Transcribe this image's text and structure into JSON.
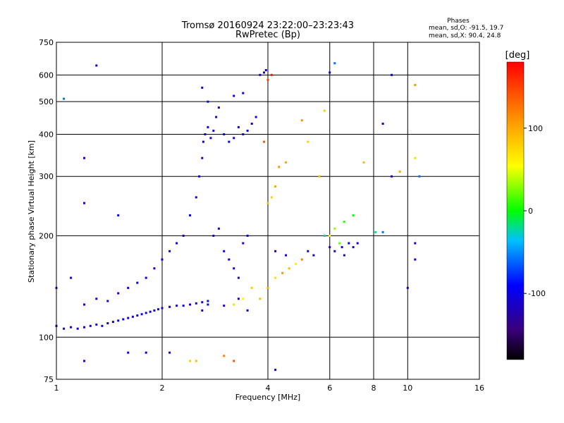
{
  "chart_data": {
    "type": "scatter",
    "title": "Tromsø 20160924 23:22:00–23:23:43",
    "subtitle": "RwPretec (Bp)",
    "xlabel": "Frequency [MHz]",
    "ylabel": "Stationary phase Virtual Height [km]",
    "x_scale": "log",
    "y_scale": "log",
    "xlim": [
      1,
      16
    ],
    "ylim": [
      75,
      750
    ],
    "x_ticks": [
      1,
      2,
      4,
      6,
      8,
      10,
      16
    ],
    "x_tick_labels": [
      "1",
      "2",
      "4",
      "6",
      "8",
      "10",
      "16"
    ],
    "y_ticks": [
      75,
      100,
      200,
      300,
      400,
      500,
      600,
      750
    ],
    "y_tick_labels": [
      "75",
      "100",
      "200",
      "300",
      "400",
      "500",
      "600",
      "750"
    ],
    "grid": true,
    "stats": {
      "heading": "Phases",
      "line_o": "mean, sd,O: -91.5, 19.7",
      "line_x": "mean, sd,X:  90.4, 24.8"
    },
    "colorbar": {
      "label": "[deg]",
      "min": -180,
      "max": 180,
      "ticks": [
        100,
        0,
        -100
      ],
      "tick_labels": [
        "100",
        "0",
        "-100"
      ]
    },
    "series": [
      {
        "values": [
          [
            1.0,
            108,
            -110
          ],
          [
            1.05,
            106,
            -105
          ],
          [
            1.1,
            107,
            -100
          ],
          [
            1.15,
            106,
            -95
          ],
          [
            1.2,
            107,
            -110
          ],
          [
            1.25,
            108,
            -100
          ],
          [
            1.3,
            109,
            -105
          ],
          [
            1.35,
            108,
            -95
          ],
          [
            1.4,
            110,
            -110
          ],
          [
            1.45,
            111,
            -100
          ],
          [
            1.5,
            112,
            -105
          ],
          [
            1.55,
            113,
            -95
          ],
          [
            1.6,
            114,
            -110
          ],
          [
            1.65,
            115,
            -100
          ],
          [
            1.7,
            116,
            -105
          ],
          [
            1.75,
            117,
            -95
          ],
          [
            1.8,
            118,
            -110
          ],
          [
            1.85,
            119,
            -100
          ],
          [
            1.9,
            120,
            -105
          ],
          [
            1.95,
            121,
            -95
          ],
          [
            2.0,
            122,
            -110
          ],
          [
            2.1,
            123,
            -100
          ],
          [
            2.2,
            124,
            -105
          ],
          [
            2.3,
            124,
            -95
          ],
          [
            2.4,
            125,
            -110
          ],
          [
            2.5,
            126,
            -100
          ],
          [
            2.6,
            127,
            -105
          ],
          [
            2.7,
            128,
            -95
          ],
          [
            1.2,
            125,
            -110
          ],
          [
            1.3,
            130,
            -100
          ],
          [
            1.4,
            128,
            -105
          ],
          [
            1.5,
            135,
            -110
          ],
          [
            1.6,
            140,
            -100
          ],
          [
            1.7,
            145,
            -105
          ],
          [
            1.8,
            150,
            -95
          ],
          [
            1.9,
            160,
            -110
          ],
          [
            2.0,
            170,
            -100
          ],
          [
            2.1,
            180,
            -105
          ],
          [
            2.2,
            190,
            -95
          ],
          [
            2.3,
            200,
            -110
          ],
          [
            2.4,
            230,
            -100
          ],
          [
            2.5,
            260,
            -105
          ],
          [
            2.55,
            300,
            -95
          ],
          [
            2.6,
            340,
            -110
          ],
          [
            2.62,
            380,
            -100
          ],
          [
            2.65,
            400,
            -105
          ],
          [
            2.7,
            420,
            -95
          ],
          [
            2.75,
            390,
            -110
          ],
          [
            2.8,
            410,
            -100
          ],
          [
            2.85,
            450,
            -105
          ],
          [
            2.7,
            500,
            -95
          ],
          [
            2.9,
            480,
            -110
          ],
          [
            2.6,
            550,
            -100
          ],
          [
            3.0,
            400,
            -105
          ],
          [
            3.1,
            380,
            -95
          ],
          [
            3.2,
            390,
            -110
          ],
          [
            3.3,
            420,
            -100
          ],
          [
            3.4,
            400,
            -105
          ],
          [
            3.5,
            410,
            -95
          ],
          [
            3.6,
            430,
            -110
          ],
          [
            3.7,
            450,
            -100
          ],
          [
            3.8,
            600,
            -105
          ],
          [
            3.9,
            610,
            -110
          ],
          [
            3.95,
            620,
            -100
          ],
          [
            3.2,
            520,
            -105
          ],
          [
            3.4,
            530,
            -95
          ],
          [
            2.8,
            200,
            -110
          ],
          [
            2.9,
            210,
            -100
          ],
          [
            3.0,
            180,
            -105
          ],
          [
            3.1,
            170,
            -95
          ],
          [
            3.2,
            160,
            -110
          ],
          [
            3.3,
            150,
            -100
          ],
          [
            3.4,
            190,
            -105
          ],
          [
            3.5,
            200,
            -95
          ],
          [
            3.3,
            130,
            -110
          ],
          [
            3.5,
            120,
            -100
          ],
          [
            2.6,
            120,
            -105
          ],
          [
            2.7,
            125,
            -95
          ],
          [
            3.0,
            124,
            -110
          ],
          [
            3.2,
            125,
            40
          ],
          [
            3.4,
            130,
            60
          ],
          [
            3.6,
            140,
            80
          ],
          [
            3.8,
            130,
            90
          ],
          [
            4.0,
            140,
            100
          ],
          [
            4.2,
            150,
            70
          ],
          [
            4.4,
            155,
            110
          ],
          [
            4.6,
            160,
            90
          ],
          [
            4.8,
            165,
            60
          ],
          [
            5.0,
            170,
            120
          ],
          [
            4.0,
            250,
            90
          ],
          [
            4.1,
            260,
            80
          ],
          [
            4.2,
            280,
            100
          ],
          [
            4.3,
            320,
            110
          ],
          [
            4.5,
            330,
            100
          ],
          [
            4.0,
            580,
            150
          ],
          [
            4.1,
            600,
            170
          ],
          [
            3.9,
            380,
            140
          ],
          [
            5.0,
            440,
            110
          ],
          [
            5.2,
            380,
            80
          ],
          [
            5.6,
            300,
            90
          ],
          [
            6.0,
            200,
            60
          ],
          [
            6.2,
            210,
            30
          ],
          [
            6.4,
            190,
            20
          ],
          [
            6.6,
            220,
            10
          ],
          [
            7.0,
            230,
            0
          ],
          [
            5.8,
            200,
            -20
          ],
          [
            6.0,
            185,
            -110
          ],
          [
            6.2,
            180,
            -100
          ],
          [
            6.5,
            185,
            -105
          ],
          [
            6.8,
            190,
            -95
          ],
          [
            7.0,
            185,
            -110
          ],
          [
            7.2,
            190,
            -100
          ],
          [
            6.6,
            175,
            -105
          ],
          [
            5.2,
            180,
            -100
          ],
          [
            5.4,
            175,
            -105
          ],
          [
            4.2,
            180,
            -110
          ],
          [
            4.5,
            175,
            -100
          ],
          [
            1.05,
            510,
            -60
          ],
          [
            1.3,
            640,
            -100
          ],
          [
            1.2,
            340,
            -105
          ],
          [
            1.2,
            250,
            -110
          ],
          [
            1.5,
            230,
            -100
          ],
          [
            1.0,
            140,
            -105
          ],
          [
            1.1,
            150,
            -95
          ],
          [
            1.2,
            85,
            -110
          ],
          [
            1.6,
            90,
            -100
          ],
          [
            1.8,
            90,
            -105
          ],
          [
            2.1,
            90,
            -110
          ],
          [
            2.4,
            85,
            80
          ],
          [
            2.5,
            85,
            90
          ],
          [
            3.0,
            88,
            120
          ],
          [
            3.2,
            85,
            140
          ],
          [
            4.2,
            80,
            -100
          ],
          [
            9.0,
            600,
            -100
          ],
          [
            9.5,
            310,
            100
          ],
          [
            8.5,
            430,
            -110
          ],
          [
            10.5,
            560,
            110
          ],
          [
            10.8,
            300,
            -60
          ],
          [
            10.5,
            340,
            40
          ],
          [
            8.1,
            205,
            -20
          ],
          [
            8.5,
            205,
            -60
          ],
          [
            10.5,
            190,
            -110
          ],
          [
            10.5,
            170,
            -100
          ],
          [
            10.0,
            140,
            -105
          ],
          [
            6.2,
            650,
            -60
          ],
          [
            6.0,
            610,
            -100
          ],
          [
            5.8,
            470,
            80
          ],
          [
            9.0,
            300,
            -110
          ],
          [
            7.5,
            330,
            90
          ]
        ]
      }
    ]
  }
}
